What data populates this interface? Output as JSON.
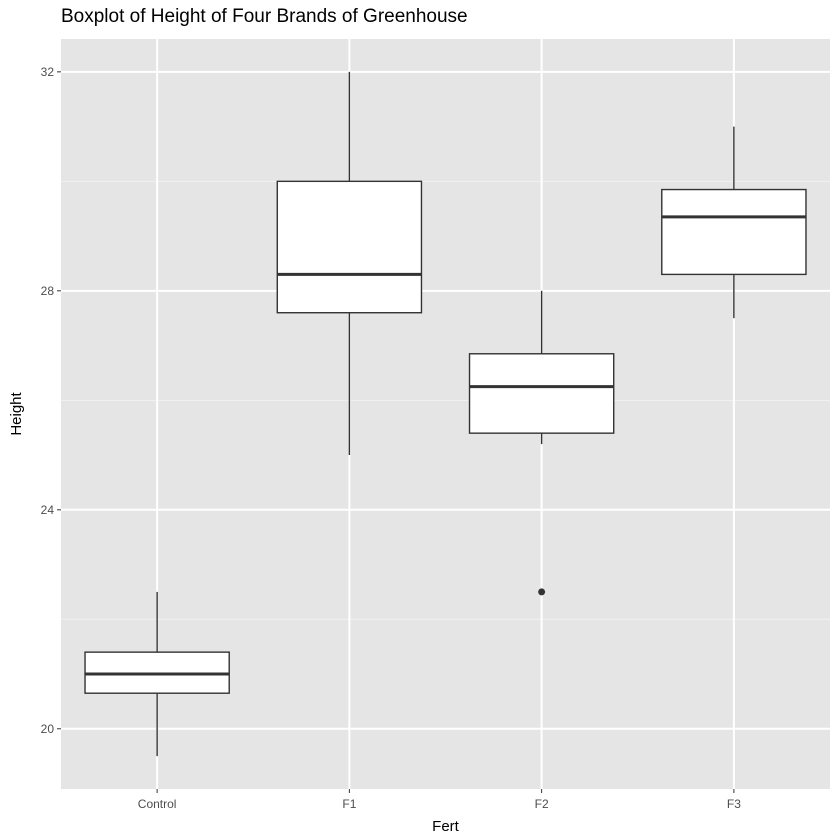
{
  "chart_data": {
    "type": "boxplot",
    "title": "Boxplot of Height of Four Brands of Greenhouse",
    "xlabel": "Fert",
    "ylabel": "Height",
    "ylim": [
      18.9,
      32.6
    ],
    "yticks": [
      20,
      24,
      28,
      32
    ],
    "categories": [
      "Control",
      "F1",
      "F2",
      "F3"
    ],
    "grid": true,
    "panel_color": "#e5e5e5",
    "box_fill": "#ffffff",
    "line_color": "#333333",
    "boxes": [
      {
        "category": "Control",
        "whisker_low": 19.5,
        "q1": 20.65,
        "median": 21.0,
        "q3": 21.4,
        "whisker_high": 22.5,
        "outliers": []
      },
      {
        "category": "F1",
        "whisker_low": 25.0,
        "q1": 27.6,
        "median": 28.3,
        "q3": 30.0,
        "whisker_high": 32.0,
        "outliers": []
      },
      {
        "category": "F2",
        "whisker_low": 25.2,
        "q1": 25.4,
        "median": 26.25,
        "q3": 26.85,
        "whisker_high": 28.0,
        "outliers": [
          22.5
        ]
      },
      {
        "category": "F3",
        "whisker_low": 27.5,
        "q1": 28.3,
        "median": 29.35,
        "q3": 29.85,
        "whisker_high": 31.0,
        "outliers": []
      }
    ]
  }
}
